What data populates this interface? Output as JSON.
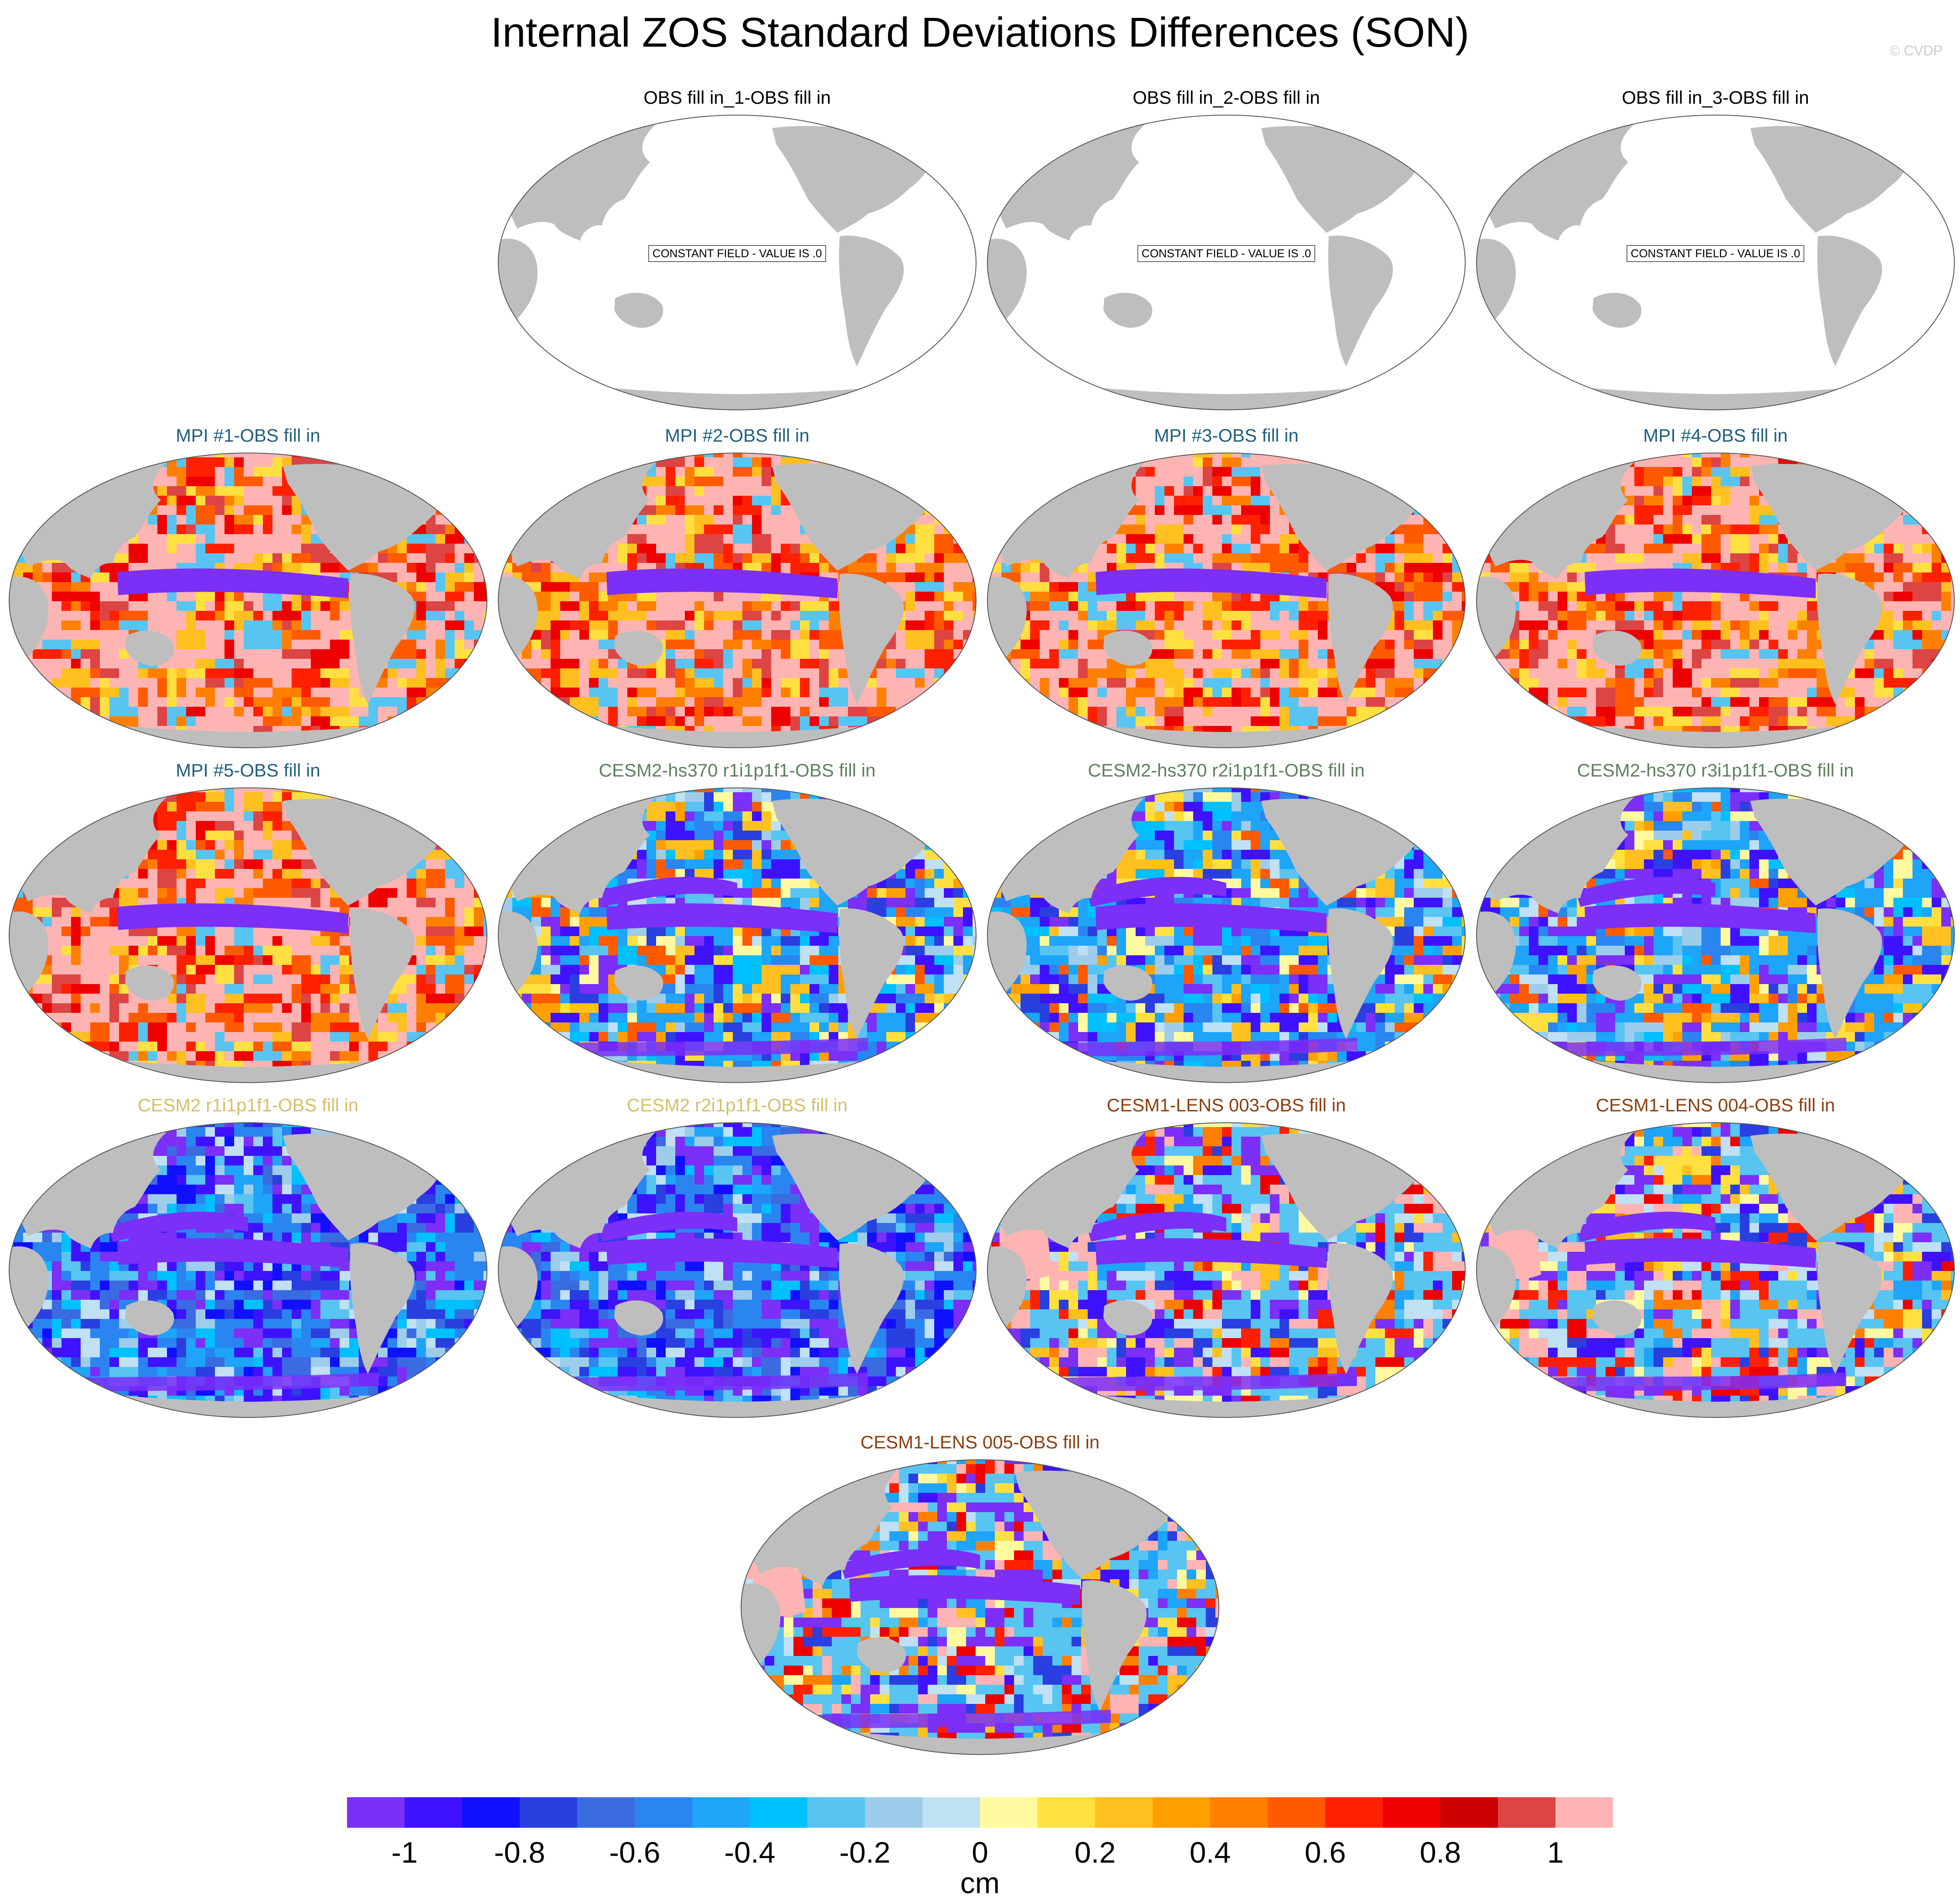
{
  "title": "Internal ZOS Standard Deviations Differences (SON)",
  "credit": "© CVDP",
  "constant_label": "CONSTANT FIELD - VALUE IS .0",
  "panels": [
    {
      "title": "OBS fill in_1-OBS fill in",
      "title_color": "#000000",
      "style": "constant"
    },
    {
      "title": "OBS fill in_2-OBS fill in",
      "title_color": "#000000",
      "style": "constant"
    },
    {
      "title": "OBS fill in_3-OBS fill in",
      "title_color": "#000000",
      "style": "constant"
    },
    {
      "title": "MPI #1-OBS fill in",
      "title_color": "#1f5f7f",
      "style": "mpi"
    },
    {
      "title": "MPI #2-OBS fill in",
      "title_color": "#1f5f7f",
      "style": "mpi"
    },
    {
      "title": "MPI #3-OBS fill in",
      "title_color": "#1f5f7f",
      "style": "mpi"
    },
    {
      "title": "MPI #4-OBS fill in",
      "title_color": "#1f5f7f",
      "style": "mpi"
    },
    {
      "title": "MPI #5-OBS fill in",
      "title_color": "#1f5f7f",
      "style": "mpi"
    },
    {
      "title": "CESM2-hs370 r1i1p1f1-OBS fill in",
      "title_color": "#5f7f5f",
      "style": "cesm2hs"
    },
    {
      "title": "CESM2-hs370 r2i1p1f1-OBS fill in",
      "title_color": "#5f7f5f",
      "style": "cesm2hs"
    },
    {
      "title": "CESM2-hs370 r3i1p1f1-OBS fill in",
      "title_color": "#5f7f5f",
      "style": "cesm2hs"
    },
    {
      "title": "CESM2 r1i1p1f1-OBS fill in",
      "title_color": "#d4c06a",
      "style": "cesm2"
    },
    {
      "title": "CESM2 r2i1p1f1-OBS fill in",
      "title_color": "#d4c06a",
      "style": "cesm2"
    },
    {
      "title": "CESM1-LENS 003-OBS fill in",
      "title_color": "#8b3f10",
      "style": "lens"
    },
    {
      "title": "CESM1-LENS 004-OBS fill in",
      "title_color": "#8b3f10",
      "style": "lens"
    },
    {
      "title": "CESM1-LENS 005-OBS fill in",
      "title_color": "#8b3f10",
      "style": "lens"
    }
  ],
  "colorbar": {
    "units": "cm",
    "colors": [
      "#7b2ff7",
      "#3f12ff",
      "#1010ff",
      "#2a3fe0",
      "#3a6be0",
      "#2a85f0",
      "#1ea4f8",
      "#00c0ff",
      "#58c4f2",
      "#9dcdea",
      "#c0e0f4",
      "#fffaa0",
      "#ffe040",
      "#ffc020",
      "#ffa000",
      "#ff8000",
      "#ff5a00",
      "#ff2000",
      "#ee0000",
      "#cc0000",
      "#dd4444",
      "#ffb4b4"
    ],
    "tick_labels": [
      "-1",
      "-0.8",
      "-0.6",
      "-0.4",
      "-0.2",
      "0",
      "0.2",
      "0.4",
      "0.6",
      "0.8",
      "1"
    ]
  }
}
